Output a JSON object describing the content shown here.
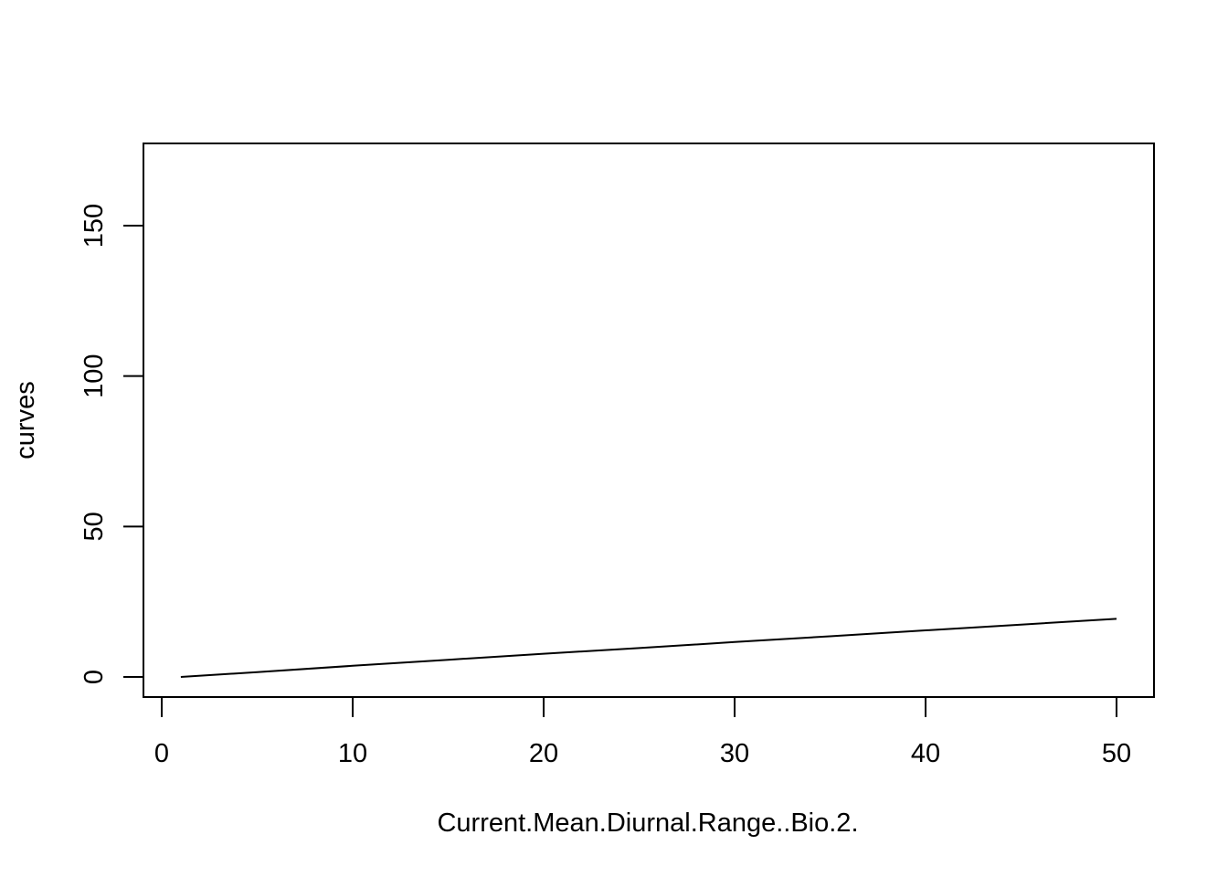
{
  "chart_data": {
    "type": "line",
    "title": "",
    "xlabel": "Current.Mean.Diurnal.Range..Bio.2.",
    "ylabel": "curves",
    "xlim": [
      0,
      50
    ],
    "ylim": [
      0,
      170
    ],
    "x_ticks": [
      0,
      10,
      20,
      30,
      40,
      50
    ],
    "x_tick_labels": [
      "0",
      "10",
      "20",
      "30",
      "40",
      "50"
    ],
    "y_ticks": [
      0,
      50,
      100,
      150
    ],
    "y_tick_labels": [
      "0",
      "50",
      "100",
      "150"
    ],
    "grid": false,
    "legend": "none",
    "line_color": "#000000",
    "series": [
      {
        "x": [
          1,
          5,
          10,
          15,
          20,
          25,
          30,
          35,
          40,
          45,
          50
        ],
        "values": [
          0,
          1.6,
          3.7,
          5.7,
          7.7,
          9.6,
          11.6,
          13.5,
          15.5,
          17.4,
          19.3
        ]
      }
    ]
  }
}
